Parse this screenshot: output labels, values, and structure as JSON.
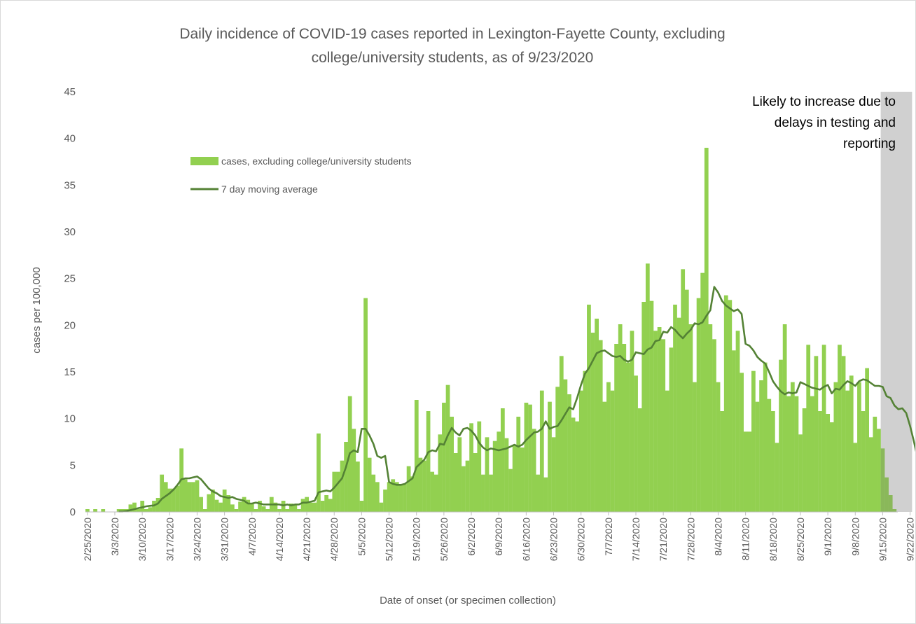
{
  "chart_data": {
    "type": "bar",
    "title_line1": "Daily incidence of COVID-19 cases reported in Lexington-Fayette County, excluding",
    "title_line2": "college/university students, as of 9/23/2020",
    "xlabel": "Date of onset (or specimen collection)",
    "ylabel": "cases per 100,000",
    "ylim": [
      0,
      45
    ],
    "yticks": [
      0,
      5,
      10,
      15,
      20,
      25,
      30,
      35,
      40,
      45
    ],
    "grid": false,
    "legend_position": "top-left",
    "x_tick_labels": [
      "2/25/2020",
      "3/3/2020",
      "3/10/2020",
      "3/17/2020",
      "3/24/2020",
      "3/31/2020",
      "4/7/2020",
      "4/14/2020",
      "4/21/2020",
      "4/28/2020",
      "5/5/2020",
      "5/12/2020",
      "5/19/2020",
      "5/26/2020",
      "6/2/2020",
      "6/9/2020",
      "6/16/2020",
      "6/23/2020",
      "6/30/2020",
      "7/7/2020",
      "7/14/2020",
      "7/21/2020",
      "7/28/2020",
      "8/4/2020",
      "8/11/2020",
      "8/18/2020",
      "8/25/2020",
      "9/1/2020",
      "9/8/2020",
      "9/15/2020",
      "9/22/2020"
    ],
    "first_date": "2/25/2020",
    "last_date": "9/22/2020",
    "series": [
      {
        "name": "cases, excluding college/university students",
        "kind": "bar",
        "color": "#92d050",
        "values": [
          0.3,
          0,
          0.3,
          0,
          0.3,
          0,
          0,
          0,
          0.3,
          0.3,
          0.3,
          0.8,
          1,
          0.3,
          1.2,
          0.3,
          0.5,
          1.2,
          1.5,
          4,
          3.2,
          2.5,
          2.5,
          2.8,
          6.8,
          3.5,
          3.2,
          3.2,
          3.4,
          1.6,
          0.3,
          1.9,
          2.4,
          1.3,
          1,
          2.4,
          1.8,
          0.8,
          0.3,
          1.1,
          1.6,
          1.3,
          0.9,
          0.3,
          1.2,
          0.6,
          0.3,
          1.6,
          1,
          0.3,
          1.2,
          0.3,
          0.9,
          0.8,
          0.3,
          1.4,
          1.6,
          1,
          1,
          8.4,
          1.2,
          1.8,
          1.4,
          4.3,
          4.3,
          5.5,
          7.5,
          12.4,
          8.9,
          5.4,
          1.2,
          22.9,
          5.8,
          4,
          3.2,
          1,
          2.4,
          3.2,
          3.5,
          3.2,
          2.9,
          3,
          4.9,
          3.8,
          12,
          5.8,
          5.5,
          10.8,
          4.3,
          4,
          8.3,
          11.7,
          13.6,
          10.2,
          6.3,
          8,
          4.9,
          5.5,
          9.5,
          6.3,
          9.7,
          4,
          8,
          4,
          7.6,
          8.6,
          11.1,
          7.9,
          4.6,
          7.1,
          10.2,
          6.9,
          11.7,
          11.5,
          8.9,
          4,
          13,
          3.7,
          11.8,
          8,
          13.4,
          16.7,
          14.2,
          12.6,
          10.1,
          9.7,
          13,
          15.1,
          22.2,
          19.2,
          20.7,
          18.4,
          11.8,
          13.9,
          13,
          18,
          20.1,
          18,
          16,
          19.4,
          14.6,
          11.1,
          22.5,
          26.6,
          22.6,
          19.4,
          19.8,
          18.5,
          13,
          17.6,
          22.2,
          20.8,
          26,
          23.8,
          20.1,
          13.9,
          22.9,
          25.6,
          39,
          20.1,
          18.5,
          13.9,
          10.8,
          23.2,
          22.7,
          17.3,
          19.4,
          14.9,
          8.6,
          8.6,
          15.1,
          11.8,
          14.1,
          16,
          12.1,
          10.8,
          7.4,
          16.3,
          20.1,
          12.4,
          13.9,
          12.4,
          8.3,
          11.1,
          17.9,
          12.4,
          16.7,
          10.8,
          17.9,
          10.5,
          9.6,
          13.9,
          17.9,
          16.7,
          13,
          14.6,
          7.4,
          13.9,
          10.8,
          15.4,
          8,
          10.2,
          8.9,
          6.8,
          3.7,
          1.8,
          0.3
        ]
      },
      {
        "name": "7 day moving average",
        "kind": "line",
        "color": "#548235",
        "values": [
          null,
          null,
          null,
          null,
          null,
          null,
          null,
          null,
          0.05,
          0.05,
          0.1,
          0.2,
          0.3,
          0.4,
          0.5,
          0.6,
          0.65,
          0.7,
          0.9,
          1.4,
          1.7,
          2,
          2.4,
          2.9,
          3.5,
          3.6,
          3.6,
          3.7,
          3.8,
          3.5,
          3,
          2.5,
          2.2,
          2,
          1.7,
          1.6,
          1.5,
          1.6,
          1.4,
          1.3,
          1.2,
          0.9,
          0.9,
          1,
          0.9,
          0.8,
          0.8,
          0.8,
          0.8,
          0.8,
          0.7,
          0.8,
          0.7,
          0.8,
          0.8,
          1,
          1,
          1.1,
          1.2,
          2.1,
          2.2,
          2.3,
          2.2,
          2.6,
          3.1,
          3.6,
          4.8,
          6.3,
          6.6,
          6.4,
          8.9,
          8.9,
          8.2,
          7.3,
          6,
          5.8,
          6,
          3.2,
          3,
          2.9,
          2.9,
          3,
          3.3,
          3.6,
          4.8,
          5.2,
          5.6,
          6.4,
          6.6,
          6.5,
          7.3,
          7.2,
          8.2,
          9,
          8.5,
          8.2,
          8.9,
          9,
          8.7,
          8.2,
          7.4,
          6.9,
          6.6,
          6.8,
          6.7,
          6.6,
          6.7,
          6.8,
          7,
          7.2,
          7,
          7.2,
          7.7,
          8.1,
          8.5,
          8.6,
          8.9,
          9.7,
          8.9,
          9.1,
          9.2,
          9.8,
          10.5,
          11.2,
          11,
          12.2,
          13.6,
          14.8,
          15.4,
          16.2,
          17,
          17.2,
          17.3,
          17,
          16.7,
          16.6,
          16.7,
          16.3,
          16.1,
          16.3,
          17.1,
          17,
          16.9,
          17.4,
          17.6,
          18.3,
          18.4,
          19.3,
          19.2,
          19.8,
          19.5,
          19,
          18.6,
          19.1,
          19.5,
          20.2,
          20.1,
          20.3,
          21,
          21.6,
          24.1,
          23.5,
          22.6,
          22.1,
          21.8,
          21.5,
          21.7,
          21.2,
          18,
          17.8,
          17.3,
          16.6,
          16.2,
          15.9,
          15,
          14,
          13.4,
          12.9,
          12.6,
          12.8,
          12.7,
          12.8,
          13.9,
          13.7,
          13.5,
          13.3,
          13.2,
          13.1,
          13.4,
          13.6,
          12.7,
          13.2,
          13.1,
          13.6,
          14,
          13.8,
          13.5,
          14,
          14.2,
          14.1,
          13.8,
          13.5,
          13.5,
          13.4,
          12.4,
          12.2,
          11.4,
          11,
          11.1,
          10.6,
          9.2,
          7.5,
          5.6
        ]
      }
    ],
    "shaded_region": {
      "start_index": 203,
      "end_index": 210,
      "label_lines": [
        "Likely to increase due to",
        "delays in testing and",
        "reporting"
      ]
    }
  }
}
